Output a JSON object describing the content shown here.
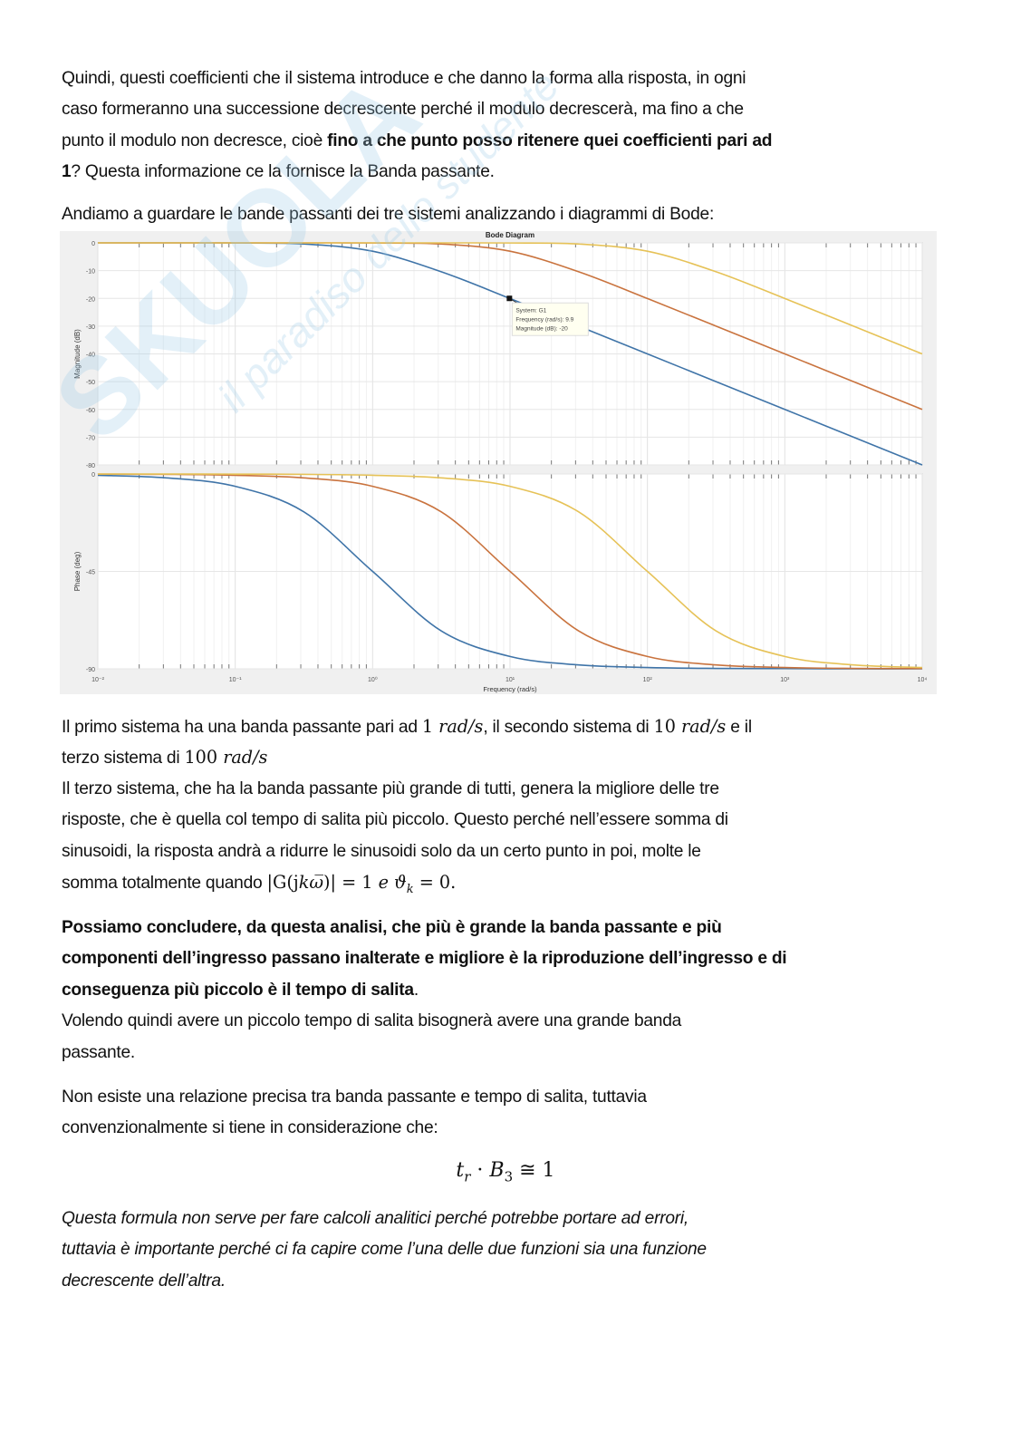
{
  "watermark": {
    "brand": "SKUOLA.net",
    "tagline": "il paradiso dello studente",
    "color": "#9ccbe8"
  },
  "paragraphs": [
    {
      "top": 0,
      "style": "normal",
      "lines": [
        [
          {
            "t": "Quindi, questi coefficienti che il sistema introduce e che danno la forma alla risposta, in ogni"
          }
        ],
        [
          {
            "t": "caso formeranno una successione decrescente perché il modulo decrescerà, ma fino a che"
          }
        ],
        [
          {
            "t": "punto il modulo non decresce, cioè "
          },
          {
            "t": "fino a che punto posso ritenere quei coefficienti pari ad",
            "s": "b"
          }
        ],
        [
          {
            "t": "1",
            "s": "b"
          },
          {
            "t": "? Questa informazione ce la fornisce la Banda passante."
          }
        ]
      ]
    },
    {
      "top": 1,
      "style": "normal",
      "lines": [
        [
          {
            "t": "Andiamo a guardare le bande passanti dei tre sistemi analizzando i diagrammi di Bode:"
          }
        ]
      ]
    },
    {
      "top": 2,
      "style": "normal",
      "lines": [
        [
          {
            "t": "Il primo sistema ha una banda passante pari ad "
          },
          {
            "t": "1 ",
            "s": "mu"
          },
          {
            "t": "rad/s",
            "s": "m"
          },
          {
            "t": ", il secondo sistema di "
          },
          {
            "t": "10 ",
            "s": "mu"
          },
          {
            "t": "rad/s",
            "s": "m"
          },
          {
            "t": " e il"
          }
        ],
        [
          {
            "t": "terzo sistema di "
          },
          {
            "t": "100 ",
            "s": "mu"
          },
          {
            "t": "rad/s",
            "s": "m"
          }
        ],
        [
          {
            "t": "Il terzo sistema, che ha la banda passante più grande di tutti, genera la migliore delle tre"
          }
        ],
        [
          {
            "t": "risposte, che è quella col tempo di salita più piccolo. Questo perché nell’essere somma di"
          }
        ],
        [
          {
            "t": "sinusoidi, la risposta andrà a ridurre le sinusoidi solo da un certo punto in poi, molte le"
          }
        ],
        [
          {
            "t": "somma totalmente quando "
          },
          {
            "t": "|G(j",
            "s": "mu"
          },
          {
            "t": "kω̅",
            "s": "m"
          },
          {
            "t": ")| = 1 ",
            "s": "mu"
          },
          {
            "t": "e ϑ",
            "s": "m"
          },
          {
            "t": "k",
            "s": "sub"
          },
          {
            "t": " = 0.",
            "s": "mu"
          }
        ]
      ]
    },
    {
      "top": 3,
      "style": "normal",
      "lines": [
        [
          {
            "t": "Possiamo concludere, da questa analisi, che più è grande la banda passante e più",
            "s": "b"
          }
        ],
        [
          {
            "t": "componenti dell’ingresso passano inalterate e migliore è la riproduzione dell’ingresso e di",
            "s": "b"
          }
        ],
        [
          {
            "t": "conseguenza più piccolo è il tempo di salita",
            "s": "b"
          },
          {
            "t": "."
          }
        ],
        [
          {
            "t": "Volendo quindi avere un piccolo tempo di salita bisognerà avere una grande banda"
          }
        ],
        [
          {
            "t": "passante."
          }
        ]
      ]
    },
    {
      "top": 4,
      "style": "normal",
      "lines": [
        [
          {
            "t": "Non esiste una relazione precisa tra banda passante e tempo di salita, tuttavia"
          }
        ],
        [
          {
            "t": "convenzionalmente si tiene in considerazione che:"
          }
        ]
      ]
    },
    {
      "top": 5,
      "style": "italic",
      "lines": [
        [
          {
            "t": "Questa formula non serve per fare calcoli analitici perché potrebbe portare ad errori,",
            "s": "i"
          }
        ],
        [
          {
            "t": "tuttavia è importante perché ci fa capire come l’una delle due funzioni sia una funzione",
            "s": "i"
          }
        ],
        [
          {
            "t": "decrescente dell’altra.",
            "s": "i"
          }
        ]
      ]
    }
  ],
  "formula": {
    "t": "t",
    "t_sub": "r",
    "dot": " · ",
    "b": "B",
    "b_sub": "3",
    "rel": " ≅ 1"
  },
  "chart_data": {
    "type": "line",
    "title": "Bode Diagram",
    "xlabel": "Frequency  (rad/s)",
    "xscale": "log",
    "xlim": [
      0.01,
      10000
    ],
    "x_tick_labels": [
      "10⁻²",
      "10⁻¹",
      "10⁰",
      "10¹",
      "10²",
      "10³",
      "10⁴"
    ],
    "grid": true,
    "colors": [
      "#3f74a8",
      "#c9733e",
      "#e6c257"
    ],
    "x": [
      0.01,
      0.0316,
      0.1,
      0.316,
      1,
      3.16,
      10,
      31.6,
      100,
      316,
      1000,
      3162,
      10000
    ],
    "magnitude": {
      "ylabel": "Magnitude (dB)",
      "ylim": [
        -80,
        0
      ],
      "y_tick_labels": [
        "0",
        "-10",
        "-20",
        "-30",
        "-40",
        "-50",
        "-60",
        "-70",
        "-80"
      ],
      "series": [
        {
          "values": [
            0,
            -0.004,
            -0.04,
            -0.41,
            -3.01,
            -10.41,
            -20.04,
            -30,
            -40,
            -50,
            -60,
            -70,
            -80
          ]
        },
        {
          "values": [
            0,
            0,
            0,
            -0.004,
            -0.04,
            -0.41,
            -3.01,
            -10.41,
            -20.04,
            -30,
            -40,
            -50,
            -60
          ]
        },
        {
          "values": [
            0,
            0,
            0,
            0,
            0,
            -0.004,
            -0.04,
            -0.41,
            -3.01,
            -10.41,
            -20.04,
            -30,
            -40
          ]
        }
      ]
    },
    "phase": {
      "ylabel": "Phase (deg)",
      "ylim": [
        -90,
        0
      ],
      "y_tick_labels": [
        "0",
        "-45",
        "-90"
      ],
      "series": [
        {
          "values": [
            -0.6,
            -1.8,
            -5.7,
            -17.5,
            -45,
            -72.5,
            -84.3,
            -88.2,
            -89.4,
            -89.8,
            -89.9,
            -90,
            -90
          ]
        },
        {
          "values": [
            -0.06,
            -0.18,
            -0.6,
            -1.8,
            -5.7,
            -17.5,
            -45,
            -72.5,
            -84.3,
            -88.2,
            -89.4,
            -89.8,
            -89.9
          ]
        },
        {
          "values": [
            -0.006,
            -0.018,
            -0.06,
            -0.18,
            -0.6,
            -1.8,
            -5.7,
            -17.5,
            -45,
            -72.5,
            -84.3,
            -88.2,
            -89.4
          ]
        }
      ]
    },
    "datatip": {
      "x": 9.9,
      "y": -20,
      "series_index": 0,
      "lines": [
        "System: G1",
        "Frequency (rad/s): 9.9",
        "Magnitude (dB): -20"
      ]
    }
  }
}
